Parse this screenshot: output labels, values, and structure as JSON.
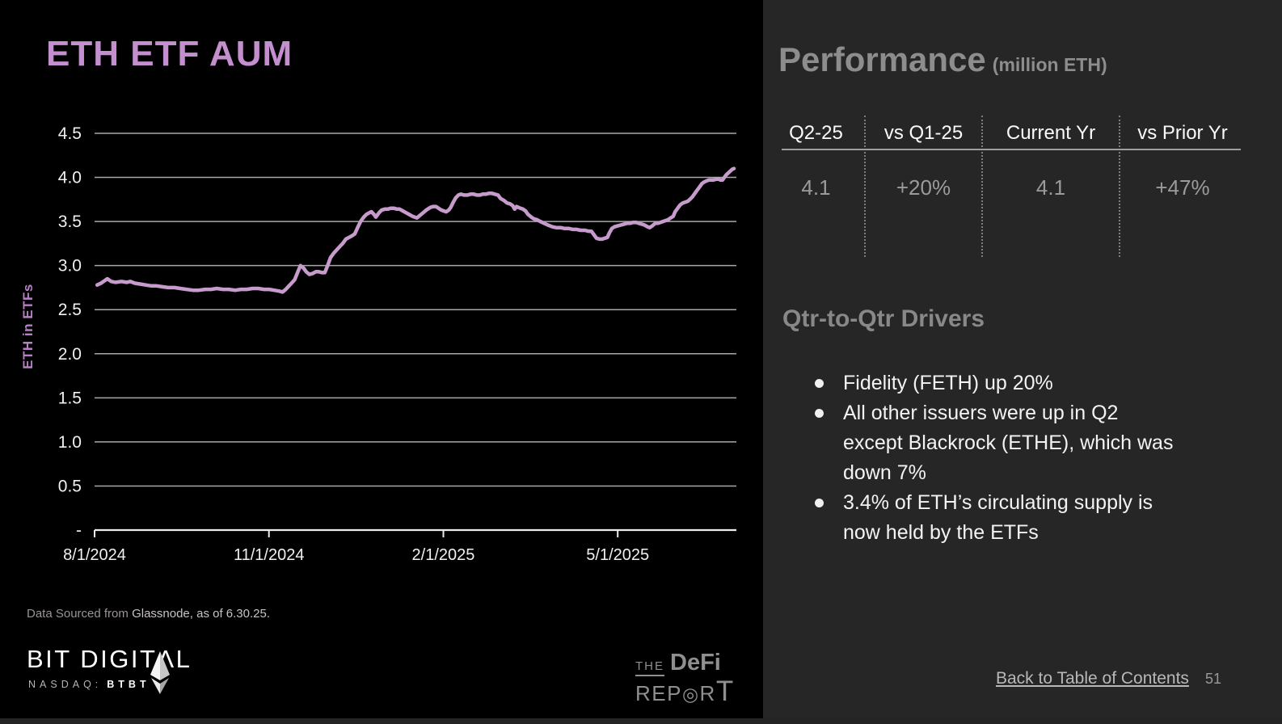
{
  "slide": {
    "title": "ETH ETF AUM",
    "accent_color": "#c48fce"
  },
  "chart_data": {
    "type": "line",
    "title": "ETH ETF AUM",
    "xlabel": "",
    "ylabel": "ETH in ETFs",
    "x_range": [
      "8/1/2024",
      "6/30/2025"
    ],
    "ylim": [
      0,
      4.5
    ],
    "grid": true,
    "legend_position": "none",
    "x_ticks": [
      {
        "t": 0.0,
        "label": "8/1/2024"
      },
      {
        "t": 0.2727,
        "label": "11/1/2024"
      },
      {
        "t": 0.5455,
        "label": "2/1/2025"
      },
      {
        "t": 0.8182,
        "label": "5/1/2025"
      }
    ],
    "y_ticks": [
      {
        "v": 4.5,
        "label": "4.5"
      },
      {
        "v": 4.0,
        "label": "4.0"
      },
      {
        "v": 3.5,
        "label": "3.5"
      },
      {
        "v": 3.0,
        "label": "3.0"
      },
      {
        "v": 2.5,
        "label": "2.5"
      },
      {
        "v": 2.0,
        "label": "2.0"
      },
      {
        "v": 1.5,
        "label": "1.5"
      },
      {
        "v": 1.0,
        "label": "1.0"
      },
      {
        "v": 0.5,
        "label": "0.5"
      },
      {
        "v": 0.0,
        "label": "-"
      }
    ],
    "line_color": "#c79ccd",
    "series": [
      {
        "name": "ETH in ETFs (million)",
        "points": [
          [
            0.004,
            2.78
          ],
          [
            0.01,
            2.8
          ],
          [
            0.016,
            2.83
          ],
          [
            0.02,
            2.85
          ],
          [
            0.026,
            2.82
          ],
          [
            0.033,
            2.81
          ],
          [
            0.042,
            2.82
          ],
          [
            0.05,
            2.81
          ],
          [
            0.056,
            2.82
          ],
          [
            0.063,
            2.8
          ],
          [
            0.072,
            2.79
          ],
          [
            0.08,
            2.78
          ],
          [
            0.089,
            2.77
          ],
          [
            0.097,
            2.77
          ],
          [
            0.106,
            2.76
          ],
          [
            0.115,
            2.75
          ],
          [
            0.125,
            2.75
          ],
          [
            0.134,
            2.74
          ],
          [
            0.144,
            2.73
          ],
          [
            0.154,
            2.72
          ],
          [
            0.163,
            2.72
          ],
          [
            0.173,
            2.73
          ],
          [
            0.182,
            2.73
          ],
          [
            0.191,
            2.74
          ],
          [
            0.201,
            2.73
          ],
          [
            0.21,
            2.73
          ],
          [
            0.22,
            2.72
          ],
          [
            0.229,
            2.73
          ],
          [
            0.238,
            2.73
          ],
          [
            0.247,
            2.74
          ],
          [
            0.256,
            2.74
          ],
          [
            0.265,
            2.73
          ],
          [
            0.273,
            2.73
          ],
          [
            0.281,
            2.72
          ],
          [
            0.289,
            2.71
          ],
          [
            0.294,
            2.7
          ],
          [
            0.299,
            2.73
          ],
          [
            0.304,
            2.77
          ],
          [
            0.308,
            2.8
          ],
          [
            0.313,
            2.84
          ],
          [
            0.318,
            2.93
          ],
          [
            0.322,
            3.0
          ],
          [
            0.327,
            2.97
          ],
          [
            0.331,
            2.93
          ],
          [
            0.336,
            2.9
          ],
          [
            0.341,
            2.91
          ],
          [
            0.346,
            2.93
          ],
          [
            0.351,
            2.93
          ],
          [
            0.356,
            2.92
          ],
          [
            0.36,
            2.92
          ],
          [
            0.364,
            2.99
          ],
          [
            0.369,
            3.09
          ],
          [
            0.374,
            3.14
          ],
          [
            0.379,
            3.18
          ],
          [
            0.384,
            3.22
          ],
          [
            0.388,
            3.25
          ],
          [
            0.393,
            3.3
          ],
          [
            0.398,
            3.32
          ],
          [
            0.403,
            3.34
          ],
          [
            0.407,
            3.36
          ],
          [
            0.412,
            3.44
          ],
          [
            0.416,
            3.5
          ],
          [
            0.421,
            3.55
          ],
          [
            0.425,
            3.58
          ],
          [
            0.43,
            3.6
          ],
          [
            0.433,
            3.61
          ],
          [
            0.437,
            3.58
          ],
          [
            0.44,
            3.55
          ],
          [
            0.445,
            3.6
          ],
          [
            0.449,
            3.63
          ],
          [
            0.454,
            3.64
          ],
          [
            0.459,
            3.64
          ],
          [
            0.463,
            3.65
          ],
          [
            0.468,
            3.65
          ],
          [
            0.473,
            3.64
          ],
          [
            0.477,
            3.64
          ],
          [
            0.482,
            3.62
          ],
          [
            0.487,
            3.6
          ],
          [
            0.492,
            3.58
          ],
          [
            0.497,
            3.56
          ],
          [
            0.504,
            3.54
          ],
          [
            0.509,
            3.57
          ],
          [
            0.514,
            3.6
          ],
          [
            0.519,
            3.63
          ],
          [
            0.525,
            3.66
          ],
          [
            0.53,
            3.67
          ],
          [
            0.534,
            3.67
          ],
          [
            0.538,
            3.65
          ],
          [
            0.542,
            3.63
          ],
          [
            0.546,
            3.62
          ],
          [
            0.55,
            3.61
          ],
          [
            0.554,
            3.63
          ],
          [
            0.557,
            3.66
          ],
          [
            0.561,
            3.72
          ],
          [
            0.565,
            3.77
          ],
          [
            0.569,
            3.8
          ],
          [
            0.573,
            3.81
          ],
          [
            0.578,
            3.8
          ],
          [
            0.583,
            3.8
          ],
          [
            0.588,
            3.81
          ],
          [
            0.593,
            3.81
          ],
          [
            0.598,
            3.8
          ],
          [
            0.603,
            3.8
          ],
          [
            0.607,
            3.81
          ],
          [
            0.612,
            3.81
          ],
          [
            0.617,
            3.82
          ],
          [
            0.621,
            3.82
          ],
          [
            0.626,
            3.81
          ],
          [
            0.631,
            3.8
          ],
          [
            0.635,
            3.76
          ],
          [
            0.64,
            3.74
          ],
          [
            0.645,
            3.71
          ],
          [
            0.65,
            3.7
          ],
          [
            0.654,
            3.68
          ],
          [
            0.657,
            3.64
          ],
          [
            0.66,
            3.67
          ],
          [
            0.663,
            3.66
          ],
          [
            0.666,
            3.65
          ],
          [
            0.67,
            3.64
          ],
          [
            0.674,
            3.62
          ],
          [
            0.678,
            3.58
          ],
          [
            0.683,
            3.55
          ],
          [
            0.687,
            3.53
          ],
          [
            0.692,
            3.52
          ],
          [
            0.697,
            3.5
          ],
          [
            0.703,
            3.48
          ],
          [
            0.709,
            3.46
          ],
          [
            0.716,
            3.44
          ],
          [
            0.722,
            3.43
          ],
          [
            0.729,
            3.43
          ],
          [
            0.735,
            3.42
          ],
          [
            0.742,
            3.42
          ],
          [
            0.748,
            3.41
          ],
          [
            0.754,
            3.41
          ],
          [
            0.76,
            3.4
          ],
          [
            0.767,
            3.4
          ],
          [
            0.772,
            3.39
          ],
          [
            0.777,
            3.39
          ],
          [
            0.781,
            3.35
          ],
          [
            0.785,
            3.31
          ],
          [
            0.79,
            3.3
          ],
          [
            0.794,
            3.3
          ],
          [
            0.798,
            3.31
          ],
          [
            0.802,
            3.32
          ],
          [
            0.805,
            3.37
          ],
          [
            0.809,
            3.42
          ],
          [
            0.813,
            3.44
          ],
          [
            0.818,
            3.45
          ],
          [
            0.823,
            3.46
          ],
          [
            0.828,
            3.47
          ],
          [
            0.833,
            3.48
          ],
          [
            0.838,
            3.48
          ],
          [
            0.842,
            3.49
          ],
          [
            0.847,
            3.49
          ],
          [
            0.851,
            3.48
          ],
          [
            0.856,
            3.47
          ],
          [
            0.86,
            3.46
          ],
          [
            0.865,
            3.44
          ],
          [
            0.868,
            3.43
          ],
          [
            0.872,
            3.45
          ],
          [
            0.877,
            3.48
          ],
          [
            0.881,
            3.48
          ],
          [
            0.885,
            3.49
          ],
          [
            0.889,
            3.5
          ],
          [
            0.893,
            3.51
          ],
          [
            0.897,
            3.52
          ],
          [
            0.901,
            3.54
          ],
          [
            0.905,
            3.56
          ],
          [
            0.908,
            3.61
          ],
          [
            0.912,
            3.65
          ],
          [
            0.916,
            3.69
          ],
          [
            0.92,
            3.71
          ],
          [
            0.924,
            3.72
          ],
          [
            0.928,
            3.73
          ],
          [
            0.931,
            3.75
          ],
          [
            0.935,
            3.78
          ],
          [
            0.939,
            3.82
          ],
          [
            0.943,
            3.86
          ],
          [
            0.947,
            3.9
          ],
          [
            0.95,
            3.93
          ],
          [
            0.954,
            3.95
          ],
          [
            0.957,
            3.96
          ],
          [
            0.961,
            3.97
          ],
          [
            0.964,
            3.97
          ],
          [
            0.968,
            3.97
          ],
          [
            0.972,
            3.98
          ],
          [
            0.976,
            3.98
          ],
          [
            0.979,
            3.97
          ],
          [
            0.982,
            3.97
          ],
          [
            0.985,
            4.0
          ],
          [
            0.988,
            4.03
          ],
          [
            0.991,
            4.05
          ],
          [
            0.994,
            4.07
          ],
          [
            0.997,
            4.09
          ],
          [
            1.0,
            4.1
          ]
        ]
      }
    ]
  },
  "source_note": {
    "prefix": "Data Sourced from ",
    "emphasis": "Glassnode, as of 6.30.25."
  },
  "logos": {
    "bit_digital": {
      "name": "BIT DIGITΛL",
      "ticker_label": "NASDAQ:",
      "ticker": "BTBT"
    },
    "defi_report": {
      "the": "THE",
      "defi": "DeFi",
      "rep": "REP",
      "bullseye": "◎",
      "r": "R",
      "t": "T"
    }
  },
  "performance": {
    "heading": "Performance",
    "heading_suffix": "(million ETH)",
    "columns": [
      {
        "header": "Q2-25",
        "value": "4.1"
      },
      {
        "header": "vs Q1-25",
        "value": "+20%"
      },
      {
        "header": "Current Yr",
        "value": "4.1"
      },
      {
        "header": "vs Prior Yr",
        "value": "+47%"
      }
    ]
  },
  "drivers": {
    "heading": "Qtr-to-Qtr Drivers",
    "items": [
      {
        "lines": [
          "Fidelity (FETH) up 20%"
        ]
      },
      {
        "lines": [
          "All other issuers were up in Q2",
          "except Blackrock (ETHE), which was",
          "down 7%"
        ]
      },
      {
        "lines": [
          "3.4% of ETH’s circulating supply is",
          "now held by the ETFs"
        ]
      }
    ]
  },
  "footer_nav": {
    "back_link": "Back to Table of Contents",
    "page_number": "51"
  }
}
